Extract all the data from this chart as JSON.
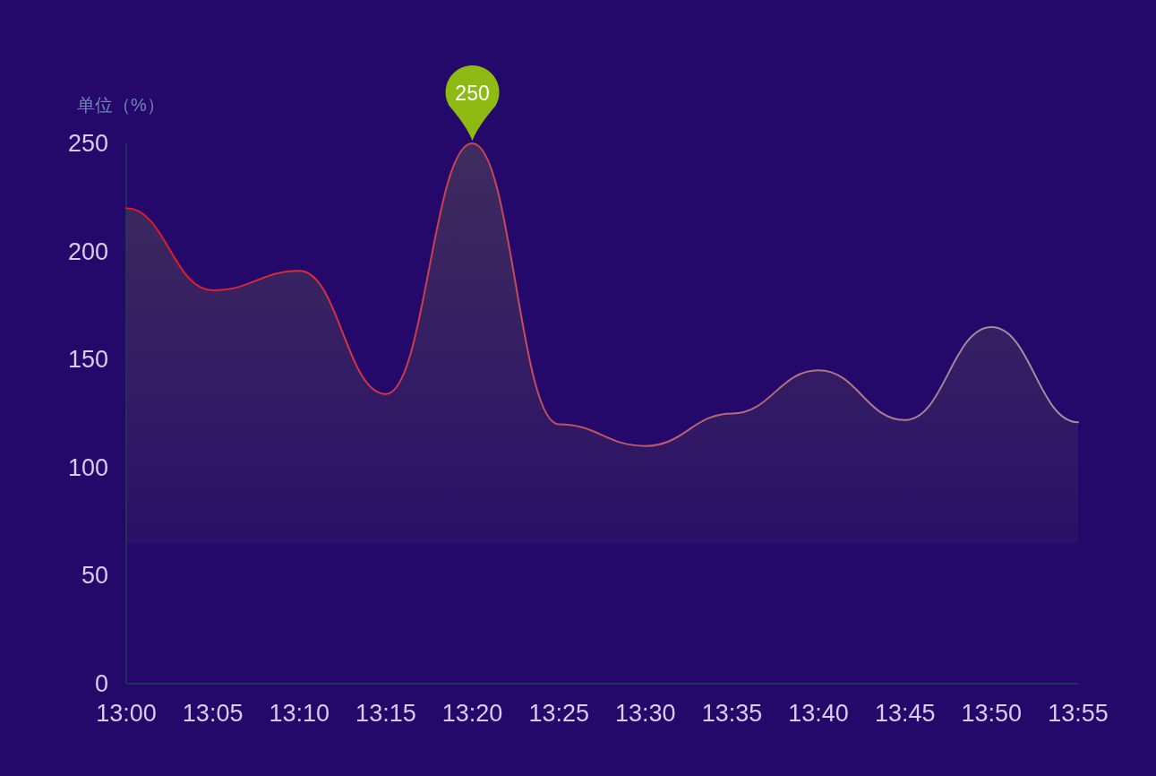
{
  "chart_data": {
    "type": "area",
    "ylabel": "单位（%）",
    "categories": [
      "13:00",
      "13:05",
      "13:10",
      "13:15",
      "13:20",
      "13:25",
      "13:30",
      "13:35",
      "13:40",
      "13:45",
      "13:50",
      "13:55"
    ],
    "values": [
      220,
      182,
      191,
      134,
      250,
      120,
      110,
      125,
      145,
      122,
      165,
      121
    ],
    "color": "#3f2c5e",
    "colors": [
      "#e21626",
      "#dc2132",
      "#d62d3e",
      "#cf3849",
      "#c94455",
      "#c34f61",
      "#bd5b6d",
      "#b76679",
      "#b17285",
      "#aa7d90",
      "#a4899c",
      "#9e94a8"
    ],
    "ylim": [
      0,
      250
    ],
    "yticks": [
      0,
      50,
      100,
      150,
      200,
      250
    ],
    "annotations": [
      {
        "text": "250",
        "x": "13:20",
        "y": 250
      }
    ],
    "grid": false,
    "marker": "none",
    "line_style": "solid"
  }
}
